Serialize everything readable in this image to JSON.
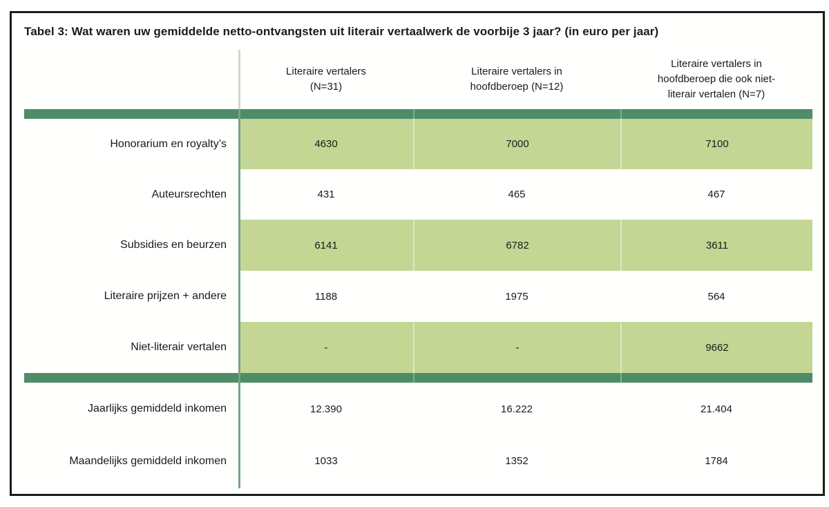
{
  "table": {
    "title": "Tabel 3: Wat waren uw gemiddelde netto-ontvangsten uit literair vertaalwerk de voorbije 3 jaar? (in euro per jaar)",
    "column_headers": [
      {
        "lines": [
          "Literaire vertalers",
          "(N=31)"
        ]
      },
      {
        "lines": [
          "Literaire vertalers in",
          "hoofdberoep (N=12)"
        ]
      },
      {
        "lines": [
          "Literaire vertalers in",
          "hoofdberoep die ook niet-",
          "literair vertalen (N=7)"
        ]
      }
    ],
    "income_rows": [
      {
        "label": "Honorarium en royalty’s",
        "values": [
          "4630",
          "7000",
          "7100"
        ]
      },
      {
        "label": "Auteursrechten",
        "values": [
          "431",
          "465",
          "467"
        ]
      },
      {
        "label": "Subsidies en beurzen",
        "values": [
          "6141",
          "6782",
          "3611"
        ]
      },
      {
        "label": "Literaire prijzen + andere",
        "values": [
          "1188",
          "1975",
          "564"
        ]
      },
      {
        "label": "Niet-literair vertalen",
        "values": [
          "-",
          "-",
          "9662"
        ]
      }
    ],
    "summary_rows": [
      {
        "label": "Jaarlijks gemiddeld inkomen",
        "values": [
          "12.390",
          "16.222",
          "21.404"
        ]
      },
      {
        "label": "Maandelijks gemiddeld inkomen",
        "values": [
          "1033",
          "1352",
          "1784"
        ]
      }
    ],
    "colors": {
      "shaded_cell": "#c3d694",
      "divider_bar": "#4f8c68",
      "bar_notch": "#7fae92",
      "column_rule": "#74a489",
      "header_rule": "#ccd9cf",
      "cell_separator": "#dde9c8",
      "border": "#1a1a1a"
    }
  }
}
